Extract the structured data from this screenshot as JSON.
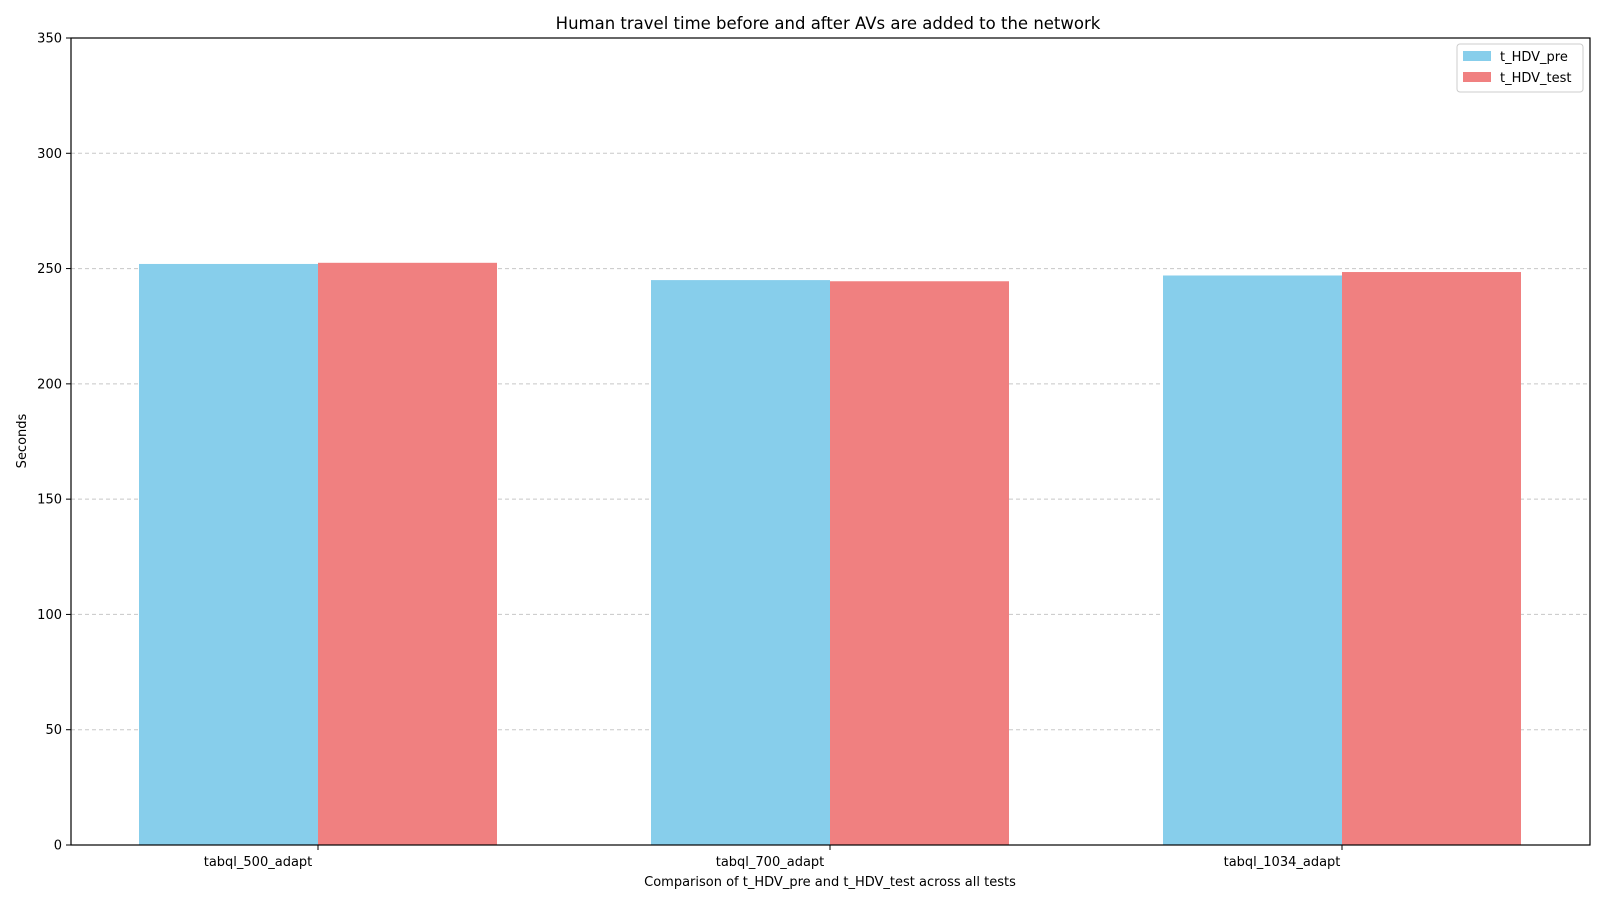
{
  "chart_data": {
    "type": "bar",
    "title": "Human travel time before and after AVs are added to the network",
    "xlabel": "Comparison of t_HDV_pre and t_HDV_test across all tests",
    "ylabel": "Seconds",
    "categories": [
      "tabql_500_adapt",
      "tabql_700_adapt",
      "tabql_1034_adapt"
    ],
    "series": [
      {
        "name": "t_HDV_pre",
        "color": "#87CEEB",
        "values": [
          252,
          245,
          247
        ]
      },
      {
        "name": "t_HDV_test",
        "color": "#F08080",
        "values": [
          252.5,
          244.5,
          248.5
        ]
      }
    ],
    "ylim": [
      0,
      350
    ],
    "yticks": [
      0,
      50,
      100,
      150,
      200,
      250,
      300,
      350
    ],
    "grid": {
      "axis": "y",
      "style": "dashed",
      "color": "#c8c8c8"
    },
    "legend": {
      "position": "top-right"
    }
  }
}
